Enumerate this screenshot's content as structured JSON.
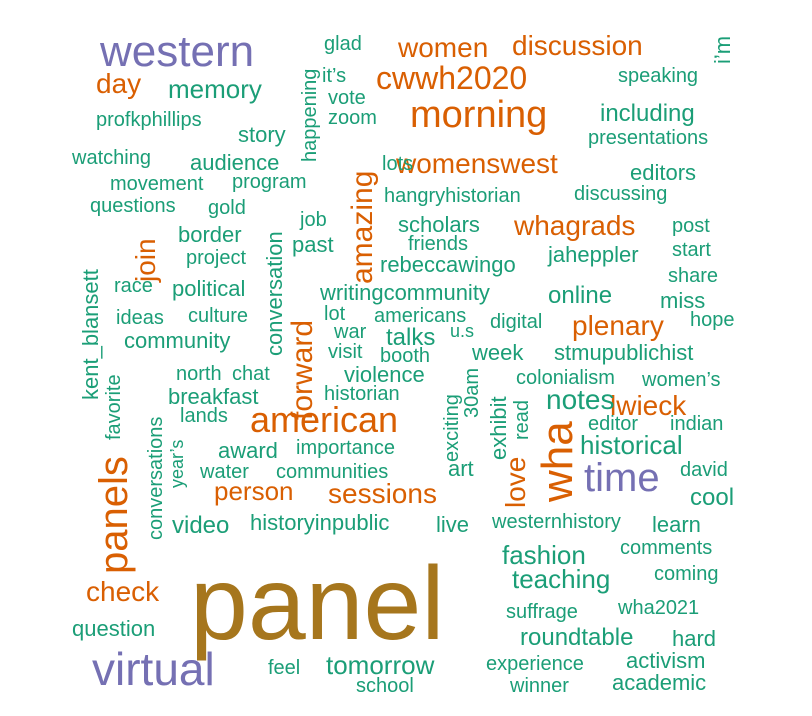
{
  "colors": {
    "brown": "#A6761D",
    "orange": "#D95F02",
    "purple": "#7570B3",
    "green": "#1B9E77"
  },
  "words": [
    {
      "text": "panel",
      "color": "brown"
    },
    {
      "text": "western",
      "color": "purple"
    },
    {
      "text": "virtual",
      "color": "purple"
    },
    {
      "text": "time",
      "color": "purple"
    },
    {
      "text": "american",
      "color": "orange"
    },
    {
      "text": "morning",
      "color": "orange"
    },
    {
      "text": "cwwh2020",
      "color": "orange"
    },
    {
      "text": "wha",
      "color": "orange"
    },
    {
      "text": "panels",
      "color": "orange"
    },
    {
      "text": "discussion",
      "color": "orange"
    },
    {
      "text": "women",
      "color": "orange"
    },
    {
      "text": "womenswest",
      "color": "orange"
    },
    {
      "text": "whagrads",
      "color": "orange"
    },
    {
      "text": "sessions",
      "color": "orange"
    },
    {
      "text": "person",
      "color": "orange"
    },
    {
      "text": "plenary",
      "color": "orange"
    },
    {
      "text": "lwieck",
      "color": "orange"
    },
    {
      "text": "forward",
      "color": "orange"
    },
    {
      "text": "amazing",
      "color": "orange"
    },
    {
      "text": "love",
      "color": "orange"
    },
    {
      "text": "join",
      "color": "orange"
    },
    {
      "text": "check",
      "color": "orange"
    },
    {
      "text": "day",
      "color": "orange"
    },
    {
      "text": "memory",
      "color": "green"
    },
    {
      "text": "it’s",
      "color": "green"
    },
    {
      "text": "glad",
      "color": "green"
    },
    {
      "text": "speaking",
      "color": "green"
    },
    {
      "text": "i’m",
      "color": "green"
    },
    {
      "text": "including",
      "color": "green"
    },
    {
      "text": "profkphillips",
      "color": "green"
    },
    {
      "text": "vote",
      "color": "green"
    },
    {
      "text": "zoom",
      "color": "green"
    },
    {
      "text": "happening",
      "color": "green"
    },
    {
      "text": "story",
      "color": "green"
    },
    {
      "text": "presentations",
      "color": "green"
    },
    {
      "text": "watching",
      "color": "green"
    },
    {
      "text": "audience",
      "color": "green"
    },
    {
      "text": "lots",
      "color": "green"
    },
    {
      "text": "editors",
      "color": "green"
    },
    {
      "text": "movement",
      "color": "green"
    },
    {
      "text": "program",
      "color": "green"
    },
    {
      "text": "hangryhistorian",
      "color": "green"
    },
    {
      "text": "discussing",
      "color": "green"
    },
    {
      "text": "questions",
      "color": "green"
    },
    {
      "text": "gold",
      "color": "green"
    },
    {
      "text": "job",
      "color": "green"
    },
    {
      "text": "scholars",
      "color": "green"
    },
    {
      "text": "post",
      "color": "green"
    },
    {
      "text": "border",
      "color": "green"
    },
    {
      "text": "past",
      "color": "green"
    },
    {
      "text": "friends",
      "color": "green"
    },
    {
      "text": "jaheppler",
      "color": "green"
    },
    {
      "text": "start",
      "color": "green"
    },
    {
      "text": "kent_blansett",
      "color": "green"
    },
    {
      "text": "project",
      "color": "green"
    },
    {
      "text": "rebeccawingo",
      "color": "green"
    },
    {
      "text": "share",
      "color": "green"
    },
    {
      "text": "race",
      "color": "green"
    },
    {
      "text": "political",
      "color": "green"
    },
    {
      "text": "conversation",
      "color": "green"
    },
    {
      "text": "writingcommunity",
      "color": "green"
    },
    {
      "text": "online",
      "color": "green"
    },
    {
      "text": "miss",
      "color": "green"
    },
    {
      "text": "ideas",
      "color": "green"
    },
    {
      "text": "culture",
      "color": "green"
    },
    {
      "text": "lot",
      "color": "green"
    },
    {
      "text": "americans",
      "color": "green"
    },
    {
      "text": "digital",
      "color": "green"
    },
    {
      "text": "hope",
      "color": "green"
    },
    {
      "text": "community",
      "color": "green"
    },
    {
      "text": "war",
      "color": "green"
    },
    {
      "text": "talks",
      "color": "green"
    },
    {
      "text": "u.s",
      "color": "green"
    },
    {
      "text": "visit",
      "color": "green"
    },
    {
      "text": "booth",
      "color": "green"
    },
    {
      "text": "week",
      "color": "green"
    },
    {
      "text": "stmupublichist",
      "color": "green"
    },
    {
      "text": "favorite",
      "color": "green"
    },
    {
      "text": "north",
      "color": "green"
    },
    {
      "text": "chat",
      "color": "green"
    },
    {
      "text": "violence",
      "color": "green"
    },
    {
      "text": "colonialism",
      "color": "green"
    },
    {
      "text": "women’s",
      "color": "green"
    },
    {
      "text": "conversations",
      "color": "green"
    },
    {
      "text": "breakfast",
      "color": "green"
    },
    {
      "text": "historian",
      "color": "green"
    },
    {
      "text": "30am",
      "color": "green"
    },
    {
      "text": "notes",
      "color": "green"
    },
    {
      "text": "lands",
      "color": "green"
    },
    {
      "text": "exciting",
      "color": "green"
    },
    {
      "text": "exhibit",
      "color": "green"
    },
    {
      "text": "read",
      "color": "green"
    },
    {
      "text": "editor",
      "color": "green"
    },
    {
      "text": "indian",
      "color": "green"
    },
    {
      "text": "year’s",
      "color": "green"
    },
    {
      "text": "award",
      "color": "green"
    },
    {
      "text": "importance",
      "color": "green"
    },
    {
      "text": "historical",
      "color": "green"
    },
    {
      "text": "water",
      "color": "green"
    },
    {
      "text": "communities",
      "color": "green"
    },
    {
      "text": "art",
      "color": "green"
    },
    {
      "text": "david",
      "color": "green"
    },
    {
      "text": "cool",
      "color": "green"
    },
    {
      "text": "video",
      "color": "green"
    },
    {
      "text": "historyinpublic",
      "color": "green"
    },
    {
      "text": "live",
      "color": "green"
    },
    {
      "text": "westernhistory",
      "color": "green"
    },
    {
      "text": "learn",
      "color": "green"
    },
    {
      "text": "fashion",
      "color": "green"
    },
    {
      "text": "comments",
      "color": "green"
    },
    {
      "text": "teaching",
      "color": "green"
    },
    {
      "text": "coming",
      "color": "green"
    },
    {
      "text": "suffrage",
      "color": "green"
    },
    {
      "text": "wha2021",
      "color": "green"
    },
    {
      "text": "question",
      "color": "green"
    },
    {
      "text": "roundtable",
      "color": "green"
    },
    {
      "text": "hard",
      "color": "green"
    },
    {
      "text": "activism",
      "color": "green"
    },
    {
      "text": "feel",
      "color": "green"
    },
    {
      "text": "tomorrow",
      "color": "green"
    },
    {
      "text": "experience",
      "color": "green"
    },
    {
      "text": "school",
      "color": "green"
    },
    {
      "text": "winner",
      "color": "green"
    },
    {
      "text": "academic",
      "color": "green"
    }
  ]
}
